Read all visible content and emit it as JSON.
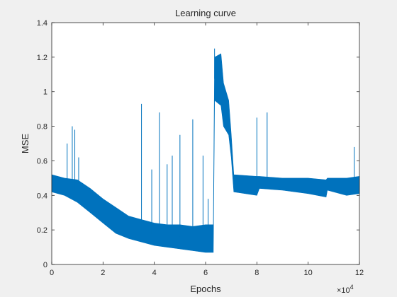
{
  "chart_data": {
    "type": "line",
    "title": "Learning curve",
    "xlabel": "Epochs",
    "ylabel": "MSE",
    "x_exponent_label": "×10",
    "x_exponent_power": "4",
    "xlim": [
      0,
      12
    ],
    "ylim": [
      0,
      1.4
    ],
    "xticks": [
      "0",
      "2",
      "4",
      "6",
      "8",
      "10",
      "12"
    ],
    "yticks": [
      "0",
      "0.2",
      "0.4",
      "0.6",
      "0.8",
      "1",
      "1.2",
      "1.4"
    ],
    "grid": false,
    "series_color": "#0072bd",
    "series": [
      {
        "band": [
          {
            "x": 0.0,
            "low": 0.42,
            "high": 0.52
          },
          {
            "x": 0.5,
            "low": 0.4,
            "high": 0.5
          },
          {
            "x": 1.0,
            "low": 0.36,
            "high": 0.49
          },
          {
            "x": 1.5,
            "low": 0.3,
            "high": 0.44
          },
          {
            "x": 2.0,
            "low": 0.24,
            "high": 0.38
          },
          {
            "x": 2.5,
            "low": 0.18,
            "high": 0.33
          },
          {
            "x": 3.0,
            "low": 0.15,
            "high": 0.28
          },
          {
            "x": 3.5,
            "low": 0.13,
            "high": 0.26
          },
          {
            "x": 4.0,
            "low": 0.11,
            "high": 0.24
          },
          {
            "x": 4.5,
            "low": 0.1,
            "high": 0.23
          },
          {
            "x": 5.0,
            "low": 0.09,
            "high": 0.23
          },
          {
            "x": 5.5,
            "low": 0.08,
            "high": 0.22
          },
          {
            "x": 6.0,
            "low": 0.07,
            "high": 0.23
          },
          {
            "x": 6.3,
            "low": 0.07,
            "high": 0.23
          },
          {
            "x": 6.35,
            "low": 0.95,
            "high": 1.2
          },
          {
            "x": 6.6,
            "low": 0.92,
            "high": 1.22
          },
          {
            "x": 6.7,
            "low": 0.8,
            "high": 1.05
          },
          {
            "x": 6.9,
            "low": 0.75,
            "high": 0.95
          },
          {
            "x": 7.0,
            "low": 0.62,
            "high": 0.75
          },
          {
            "x": 7.1,
            "low": 0.42,
            "high": 0.52
          },
          {
            "x": 8.0,
            "low": 0.4,
            "high": 0.51
          },
          {
            "x": 8.1,
            "low": 0.44,
            "high": 0.51
          },
          {
            "x": 9.0,
            "low": 0.43,
            "high": 0.5
          },
          {
            "x": 10.0,
            "low": 0.41,
            "high": 0.5
          },
          {
            "x": 10.7,
            "low": 0.39,
            "high": 0.49
          },
          {
            "x": 10.75,
            "low": 0.43,
            "high": 0.5
          },
          {
            "x": 11.5,
            "low": 0.4,
            "high": 0.5
          },
          {
            "x": 12.0,
            "low": 0.41,
            "high": 0.51
          }
        ],
        "spikes": [
          {
            "x": 0.6,
            "y": 0.7
          },
          {
            "x": 0.8,
            "y": 0.8
          },
          {
            "x": 0.9,
            "y": 0.78
          },
          {
            "x": 1.05,
            "y": 0.62
          },
          {
            "x": 3.5,
            "y": 0.93
          },
          {
            "x": 3.9,
            "y": 0.55
          },
          {
            "x": 4.2,
            "y": 0.88
          },
          {
            "x": 4.5,
            "y": 0.58
          },
          {
            "x": 4.7,
            "y": 0.63
          },
          {
            "x": 5.0,
            "y": 0.75
          },
          {
            "x": 5.5,
            "y": 0.84
          },
          {
            "x": 5.9,
            "y": 0.63
          },
          {
            "x": 6.1,
            "y": 0.38
          },
          {
            "x": 6.35,
            "y": 1.25
          },
          {
            "x": 8.0,
            "y": 0.85
          },
          {
            "x": 8.4,
            "y": 0.88
          },
          {
            "x": 11.8,
            "y": 0.68
          }
        ]
      }
    ]
  }
}
